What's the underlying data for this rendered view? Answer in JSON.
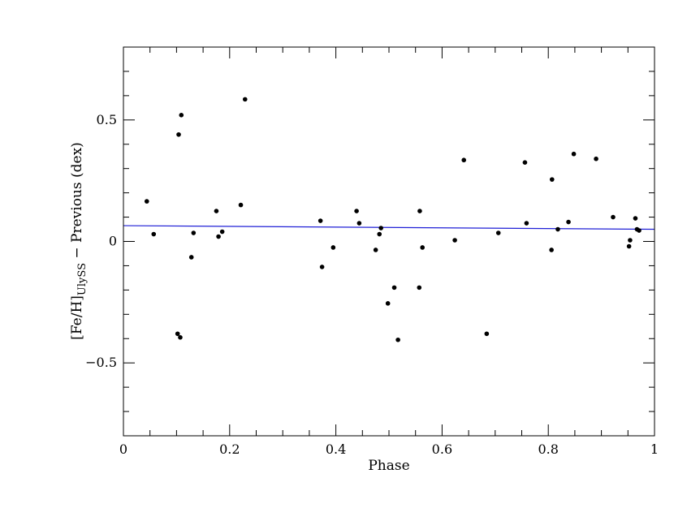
{
  "chart_data": {
    "type": "scatter",
    "xlabel": "Phase",
    "ylabel": {
      "prefix": "[Fe/H]",
      "subscript": "UlySS",
      "suffix": " − Previous (dex)"
    },
    "xlim": [
      0,
      1
    ],
    "ylim": [
      -0.8,
      0.8
    ],
    "x_ticks": [
      {
        "value": 0,
        "label": "0"
      },
      {
        "value": 0.2,
        "label": "0.2"
      },
      {
        "value": 0.4,
        "label": "0.4"
      },
      {
        "value": 0.6,
        "label": "0.6"
      },
      {
        "value": 0.8,
        "label": "0.8"
      },
      {
        "value": 1,
        "label": "1"
      }
    ],
    "y_ticks": [
      {
        "value": -0.5,
        "label": "−0.5"
      },
      {
        "value": 0,
        "label": "0"
      },
      {
        "value": 0.5,
        "label": "0.5"
      }
    ],
    "x_minor_step": 0.05,
    "y_minor_step": 0.1,
    "grid": false,
    "point_color": "#000000",
    "fit_color": "#1f1fd6",
    "fit_line": {
      "x": [
        0,
        1
      ],
      "y": [
        0.065,
        0.05
      ]
    },
    "points": [
      {
        "x": 0.044,
        "y": 0.165
      },
      {
        "x": 0.057,
        "y": 0.03
      },
      {
        "x": 0.102,
        "y": -0.38
      },
      {
        "x": 0.104,
        "y": 0.44
      },
      {
        "x": 0.107,
        "y": -0.395
      },
      {
        "x": 0.109,
        "y": 0.52
      },
      {
        "x": 0.128,
        "y": -0.065
      },
      {
        "x": 0.132,
        "y": 0.035
      },
      {
        "x": 0.175,
        "y": 0.125
      },
      {
        "x": 0.179,
        "y": 0.02
      },
      {
        "x": 0.186,
        "y": 0.04
      },
      {
        "x": 0.221,
        "y": 0.15
      },
      {
        "x": 0.229,
        "y": 0.585
      },
      {
        "x": 0.371,
        "y": 0.085
      },
      {
        "x": 0.374,
        "y": -0.105
      },
      {
        "x": 0.395,
        "y": -0.025
      },
      {
        "x": 0.439,
        "y": 0.125
      },
      {
        "x": 0.444,
        "y": 0.075
      },
      {
        "x": 0.475,
        "y": -0.035
      },
      {
        "x": 0.482,
        "y": 0.03
      },
      {
        "x": 0.485,
        "y": 0.055
      },
      {
        "x": 0.498,
        "y": -0.255
      },
      {
        "x": 0.51,
        "y": -0.19
      },
      {
        "x": 0.517,
        "y": -0.405
      },
      {
        "x": 0.557,
        "y": -0.19
      },
      {
        "x": 0.558,
        "y": 0.125
      },
      {
        "x": 0.563,
        "y": -0.025
      },
      {
        "x": 0.624,
        "y": 0.005
      },
      {
        "x": 0.641,
        "y": 0.335
      },
      {
        "x": 0.684,
        "y": -0.38
      },
      {
        "x": 0.706,
        "y": 0.035
      },
      {
        "x": 0.756,
        "y": 0.325
      },
      {
        "x": 0.759,
        "y": 0.075
      },
      {
        "x": 0.806,
        "y": -0.035
      },
      {
        "x": 0.807,
        "y": 0.255
      },
      {
        "x": 0.818,
        "y": 0.05
      },
      {
        "x": 0.838,
        "y": 0.08
      },
      {
        "x": 0.848,
        "y": 0.36
      },
      {
        "x": 0.89,
        "y": 0.34
      },
      {
        "x": 0.922,
        "y": 0.1
      },
      {
        "x": 0.952,
        "y": -0.02
      },
      {
        "x": 0.954,
        "y": 0.005
      },
      {
        "x": 0.964,
        "y": 0.095
      },
      {
        "x": 0.967,
        "y": 0.05
      },
      {
        "x": 0.971,
        "y": 0.045
      }
    ]
  }
}
